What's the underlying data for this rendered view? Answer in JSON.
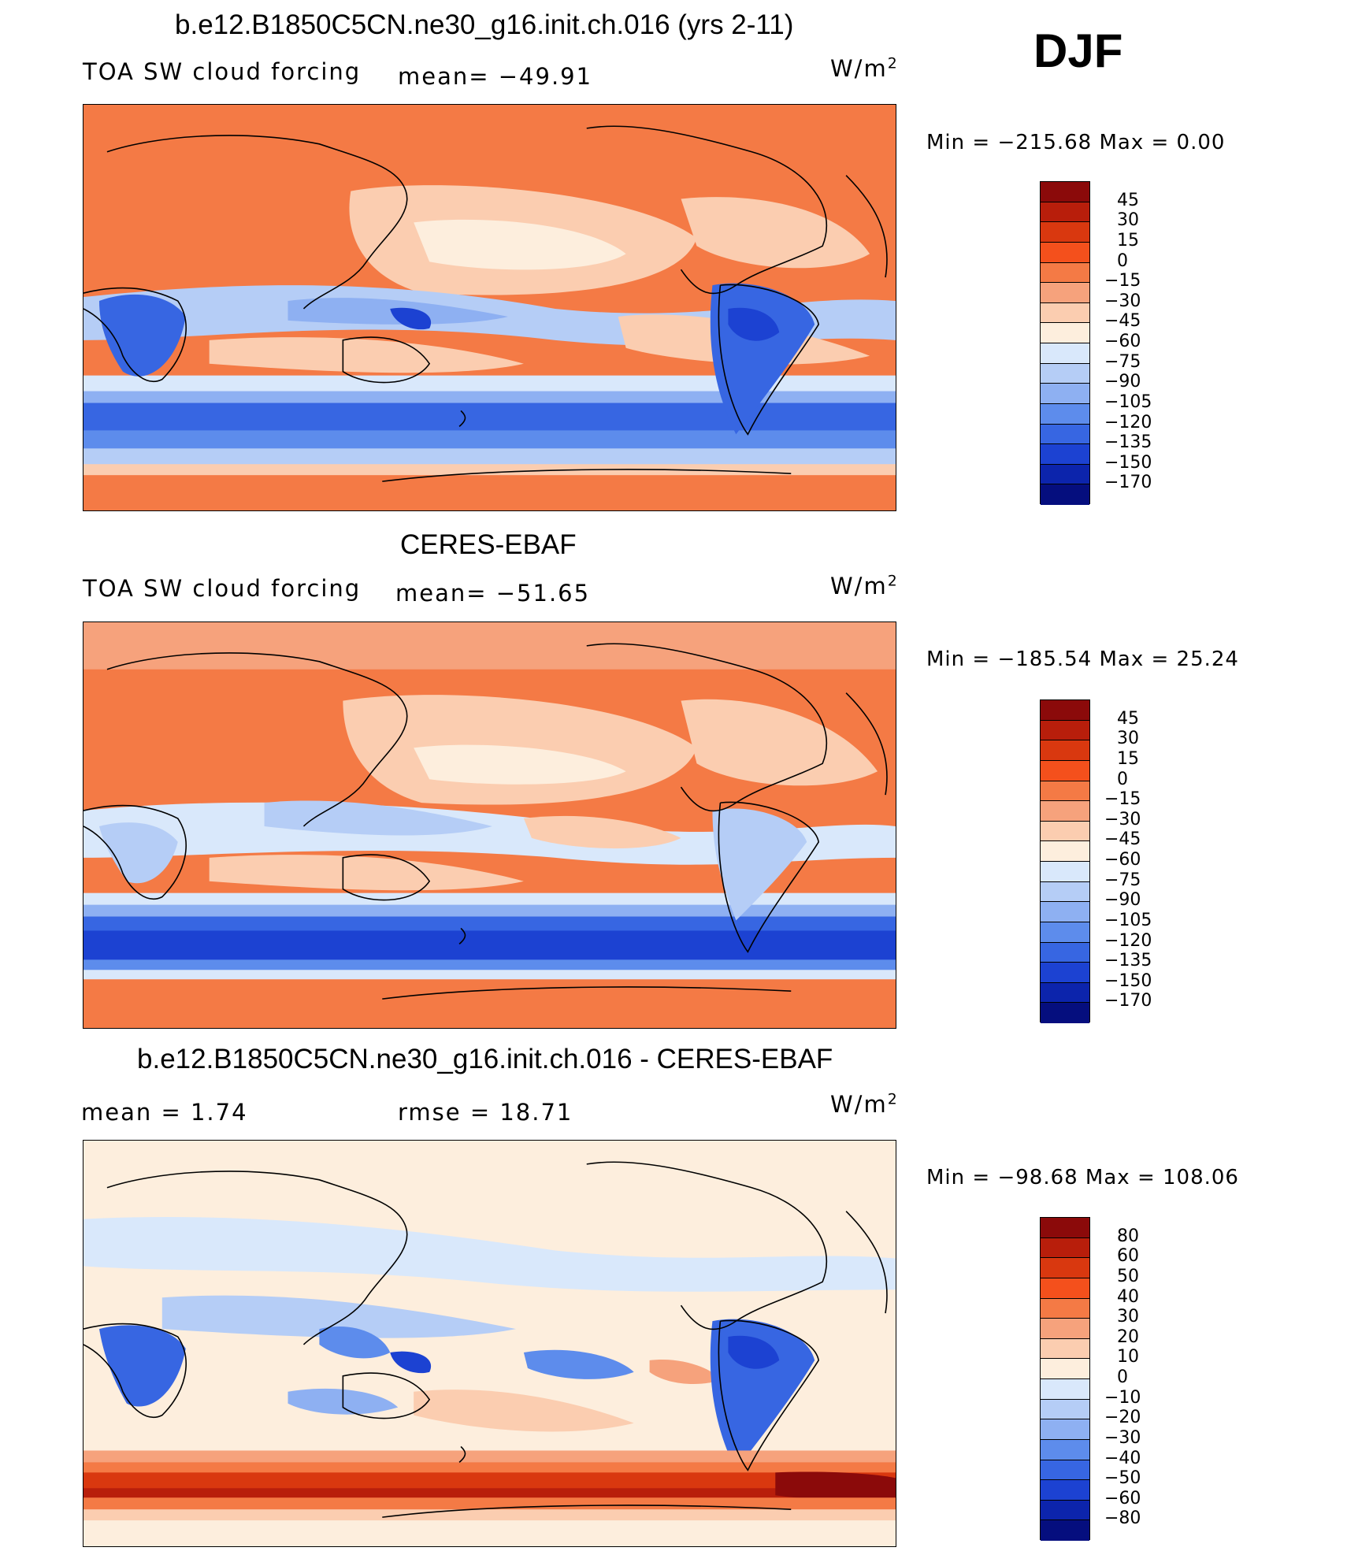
{
  "season": "DJF",
  "units_label": "W/m",
  "units_exp": "2",
  "panels": [
    {
      "title": "b.e12.B1850C5CN.ne30_g16.init.ch.016 (yrs 2-11)",
      "left_text": "TOA SW cloud forcing",
      "center_text": "mean= −49.91",
      "min_max": "Min  =  −215.68  Max  =     0.00",
      "levels": [
        "45",
        "30",
        "15",
        "0",
        "−15",
        "−30",
        "−45",
        "−60",
        "−75",
        "−90",
        "−105",
        "−120",
        "−135",
        "−150",
        "−170"
      ],
      "colors": [
        "#8b0a0a",
        "#b81e0b",
        "#d9380f",
        "#f4501c",
        "#f47a45",
        "#f6a27c",
        "#fbcdb0",
        "#fdeedd",
        "#d9e8fb",
        "#b5cdf6",
        "#8eb0f2",
        "#5d8cec",
        "#3766e2",
        "#1c42d2",
        "#0c24ac",
        "#050e7e"
      ]
    },
    {
      "title": "CERES-EBAF",
      "left_text": "TOA SW cloud forcing",
      "center_text": "mean= −51.65",
      "min_max": "Min  =  −185.54  Max  =    25.24",
      "levels": [
        "45",
        "30",
        "15",
        "0",
        "−15",
        "−30",
        "−45",
        "−60",
        "−75",
        "−90",
        "−105",
        "−120",
        "−135",
        "−150",
        "−170"
      ],
      "colors": [
        "#8b0a0a",
        "#b81e0b",
        "#d9380f",
        "#f4501c",
        "#f47a45",
        "#f6a27c",
        "#fbcdb0",
        "#fdeedd",
        "#d9e8fb",
        "#b5cdf6",
        "#8eb0f2",
        "#5d8cec",
        "#3766e2",
        "#1c42d2",
        "#0c24ac",
        "#050e7e"
      ]
    },
    {
      "title": "b.e12.B1850C5CN.ne30_g16.init.ch.016 - CERES-EBAF",
      "left_text": "mean  =     1.74",
      "center_text": "rmse  =    18.71",
      "min_max": "Min  =  −98.68  Max  =  108.06",
      "levels": [
        "80",
        "60",
        "50",
        "40",
        "30",
        "20",
        "10",
        "0",
        "−10",
        "−20",
        "−30",
        "−40",
        "−50",
        "−60",
        "−80"
      ],
      "colors": [
        "#8b0a0a",
        "#b81e0b",
        "#d9380f",
        "#f4501c",
        "#f47a45",
        "#f6a27c",
        "#fbcdb0",
        "#fdeedd",
        "#d9e8fb",
        "#b5cdf6",
        "#8eb0f2",
        "#5d8cec",
        "#3766e2",
        "#1c42d2",
        "#0c24ac",
        "#050e7e"
      ]
    }
  ]
}
